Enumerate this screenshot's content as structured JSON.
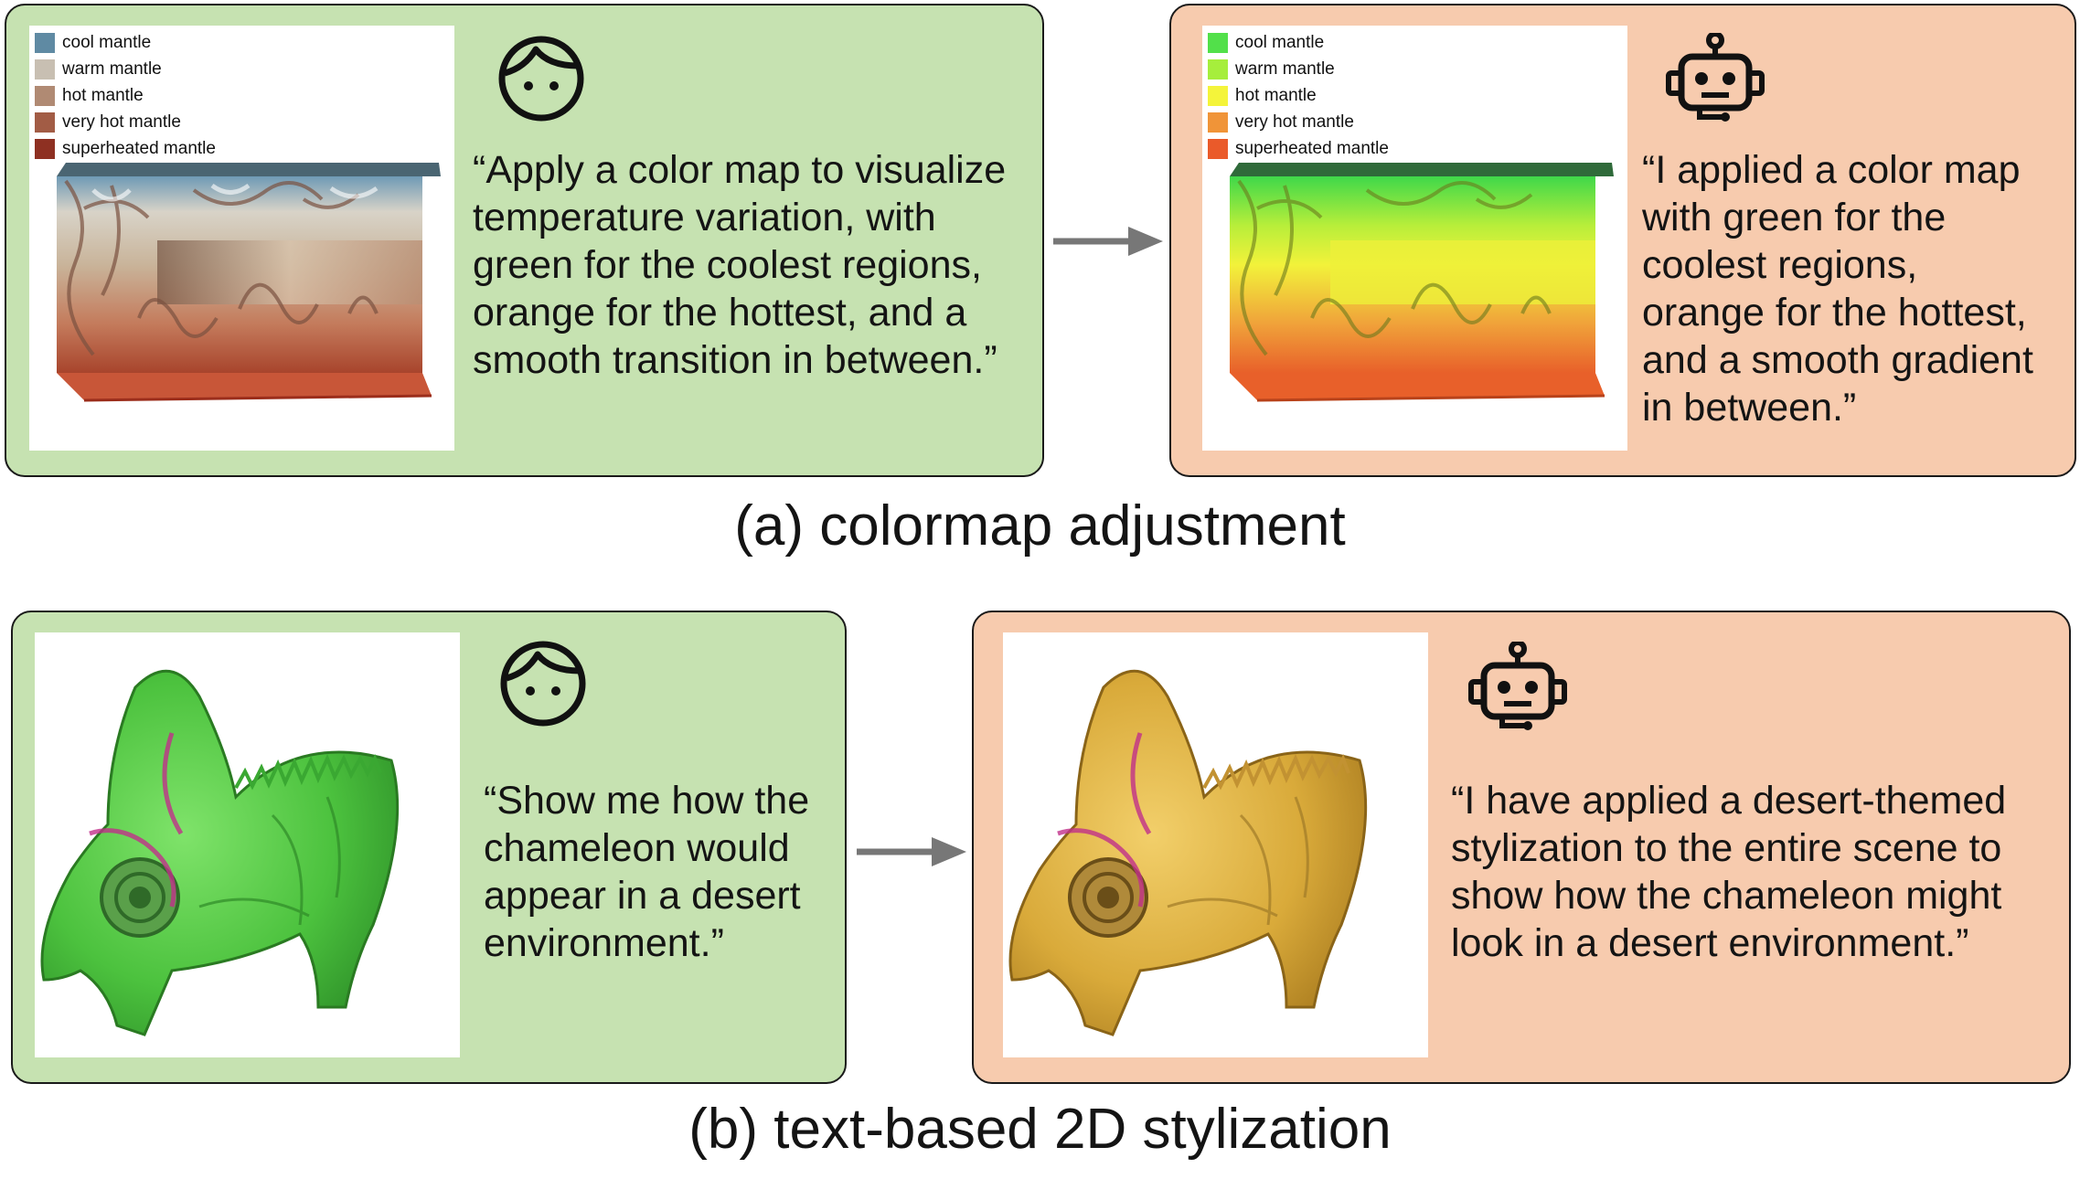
{
  "section_a": {
    "caption": "(a) colormap adjustment",
    "user": {
      "icon": "person-face-icon",
      "quote": "“Apply a color map to visualize\ntemperature variation, with\ngreen for the coolest regions,\norange for the hottest, and a\nsmooth transition in between.”",
      "legend": [
        {
          "label": "cool mantle",
          "color": "#5f8aa3"
        },
        {
          "label": "warm mantle",
          "color": "#c8bfb2"
        },
        {
          "label": "hot mantle",
          "color": "#b08a73"
        },
        {
          "label": "very hot mantle",
          "color": "#a25c45"
        },
        {
          "label": "superheated mantle",
          "color": "#8e3022"
        }
      ]
    },
    "bot": {
      "icon": "robot-icon",
      "quote": "“I applied a color map\nwith green for the\ncoolest regions,\norange for the hottest,\nand a smooth gradient\nin between.”",
      "legend": [
        {
          "label": "cool mantle",
          "color": "#52e04a"
        },
        {
          "label": "warm mantle",
          "color": "#a6ee3c"
        },
        {
          "label": "hot mantle",
          "color": "#f4f43a"
        },
        {
          "label": "very hot mantle",
          "color": "#f09438"
        },
        {
          "label": "superheated mantle",
          "color": "#ea5a2a"
        }
      ]
    }
  },
  "section_b": {
    "caption": "(b) text-based 2D stylization",
    "user": {
      "icon": "person-face-icon",
      "quote": "“Show me how the\nchameleon would\nappear in a desert\nenvironment.”"
    },
    "bot": {
      "icon": "robot-icon",
      "quote": "“I have applied a desert-themed\nstylization to the entire scene to\nshow how the chameleon might\nlook in a desert environment.”"
    }
  },
  "colors": {
    "user_panel": "#c6e2b1",
    "bot_panel": "#f7cbae",
    "arrow": "#777777"
  }
}
